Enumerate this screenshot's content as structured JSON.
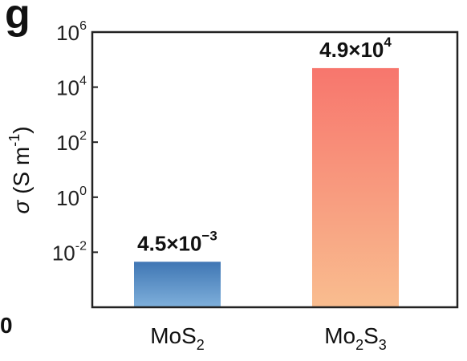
{
  "panel_label": "g",
  "corner_text": "0",
  "chart_data": {
    "type": "bar",
    "yscale": "log",
    "ylim_exponents": [
      -4,
      6
    ],
    "yticks": [
      {
        "base": "10",
        "exp": "6",
        "value": 1000000
      },
      {
        "base": "10",
        "exp": "4",
        "value": 10000
      },
      {
        "base": "10",
        "exp": "2",
        "value": 100
      },
      {
        "base": "10",
        "exp": "0",
        "value": 1
      },
      {
        "base": "10",
        "exp": "-2",
        "value": 0.01
      }
    ],
    "ylabel": {
      "symbol": "σ",
      "open": " (S m",
      "sup": "-1",
      "close": ")"
    },
    "categories": [
      {
        "main": "MoS",
        "sub1": "2",
        "mid": "",
        "sub2": ""
      },
      {
        "main": "Mo",
        "sub1": "2",
        "mid": "S",
        "sub2": "3"
      }
    ],
    "values": [
      0.0045,
      49000
    ],
    "value_labels": [
      {
        "mant": "4.5×10",
        "exp": "−3"
      },
      {
        "mant": "4.9×10",
        "exp": "4"
      }
    ],
    "colors": [
      {
        "top": "#3f76b4",
        "bottom": "#7fb0db"
      },
      {
        "top": "#f7766d",
        "bottom": "#f9bd8f"
      }
    ],
    "grid": false,
    "legend": "none"
  }
}
